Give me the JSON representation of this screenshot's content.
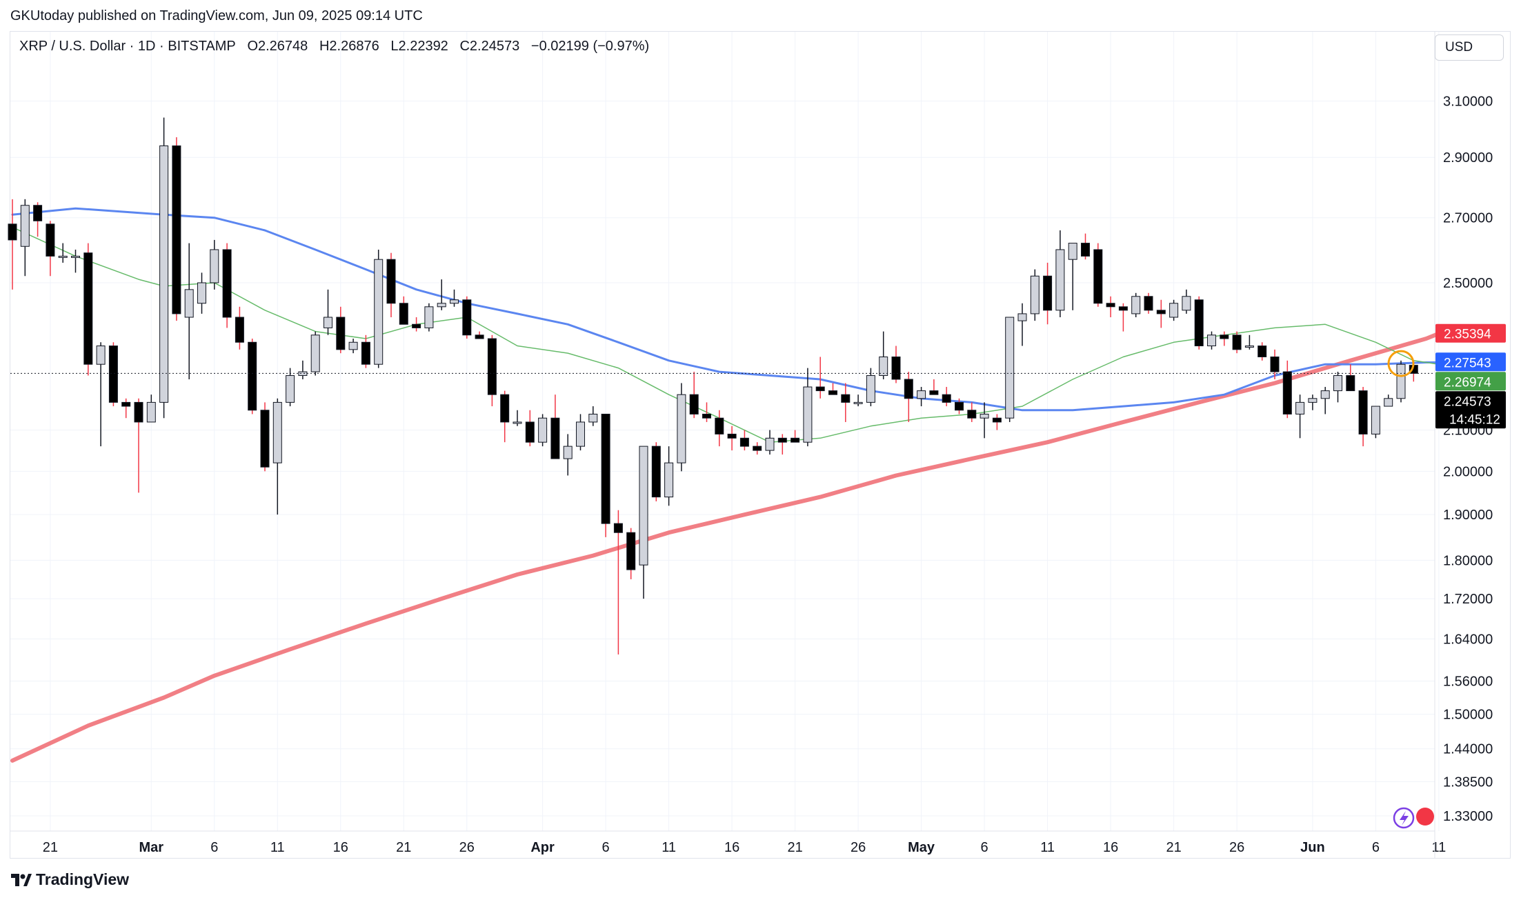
{
  "header": {
    "credit": "GKUtoday published on TradingView.com, Jun 09, 2025 09:14 UTC"
  },
  "legend": {
    "symbol": "XRP / U.S. Dollar · 1D · BITSTAMP",
    "open": "O2.26748",
    "high": "H2.26876",
    "low": "L2.22392",
    "close": "C2.24573",
    "change": "−0.02199 (−0.97%)"
  },
  "currency": "USD",
  "footer": {
    "brand": "TradingView"
  },
  "colors": {
    "up_fill": "#d1d4dc",
    "down_fill": "#000000",
    "wick_up": "#131722",
    "wick_down": "#f23645",
    "ma_red": "#f07178",
    "ma_blue": "#5b86f0",
    "ma_green": "#66bb6a",
    "tag_red": "#f23645",
    "tag_blue": "#2962ff",
    "tag_green": "#43a047",
    "tag_black": "#000000",
    "circle": "#f59e0b"
  },
  "chart_data": {
    "type": "candlestick",
    "title": "XRP / U.S. Dollar · 1D · BITSTAMP",
    "y_scale": "log",
    "ylim": [
      1.3,
      3.22
    ],
    "y_ticks": [
      "3.10000",
      "2.90000",
      "2.70000",
      "2.50000",
      "2.10000",
      "2.00000",
      "1.90000",
      "1.80000",
      "1.72000",
      "1.64000",
      "1.56000",
      "1.50000",
      "1.44000",
      "1.38500",
      "1.33000"
    ],
    "x_ticks": [
      {
        "label": "21",
        "date": "2025-02-21"
      },
      {
        "label": "Mar",
        "date": "2025-03-01"
      },
      {
        "label": "6",
        "date": "2025-03-06"
      },
      {
        "label": "11",
        "date": "2025-03-11"
      },
      {
        "label": "16",
        "date": "2025-03-16"
      },
      {
        "label": "21",
        "date": "2025-03-21"
      },
      {
        "label": "26",
        "date": "2025-03-26"
      },
      {
        "label": "Apr",
        "date": "2025-04-01"
      },
      {
        "label": "6",
        "date": "2025-04-06"
      },
      {
        "label": "11",
        "date": "2025-04-11"
      },
      {
        "label": "16",
        "date": "2025-04-16"
      },
      {
        "label": "21",
        "date": "2025-04-21"
      },
      {
        "label": "26",
        "date": "2025-04-26"
      },
      {
        "label": "May",
        "date": "2025-05-01"
      },
      {
        "label": "6",
        "date": "2025-05-06"
      },
      {
        "label": "11",
        "date": "2025-05-11"
      },
      {
        "label": "16",
        "date": "2025-05-16"
      },
      {
        "label": "21",
        "date": "2025-05-21"
      },
      {
        "label": "26",
        "date": "2025-05-26"
      },
      {
        "label": "Jun",
        "date": "2025-06-01"
      },
      {
        "label": "6",
        "date": "2025-06-06"
      },
      {
        "label": "11",
        "date": "2025-06-11"
      }
    ],
    "first_date": "2025-02-18",
    "candles": [
      {
        "o": 2.68,
        "h": 2.76,
        "l": 2.48,
        "c": 2.63
      },
      {
        "o": 2.61,
        "h": 2.76,
        "l": 2.52,
        "c": 2.74
      },
      {
        "o": 2.74,
        "h": 2.75,
        "l": 2.64,
        "c": 2.69
      },
      {
        "o": 2.68,
        "h": 2.69,
        "l": 2.52,
        "c": 2.58
      },
      {
        "o": 2.58,
        "h": 2.62,
        "l": 2.56,
        "c": 2.58
      },
      {
        "o": 2.58,
        "h": 2.6,
        "l": 2.53,
        "c": 2.58
      },
      {
        "o": 2.59,
        "h": 2.62,
        "l": 2.24,
        "c": 2.27
      },
      {
        "o": 2.27,
        "h": 2.33,
        "l": 2.06,
        "c": 2.32
      },
      {
        "o": 2.32,
        "h": 2.33,
        "l": 2.16,
        "c": 2.17
      },
      {
        "o": 2.17,
        "h": 2.18,
        "l": 2.13,
        "c": 2.16
      },
      {
        "o": 2.17,
        "h": 2.18,
        "l": 1.95,
        "c": 2.12
      },
      {
        "o": 2.12,
        "h": 2.19,
        "l": 2.12,
        "c": 2.17
      },
      {
        "o": 2.17,
        "h": 3.04,
        "l": 2.13,
        "c": 2.94
      },
      {
        "o": 2.94,
        "h": 2.97,
        "l": 2.39,
        "c": 2.41
      },
      {
        "o": 2.4,
        "h": 2.62,
        "l": 2.23,
        "c": 2.48
      },
      {
        "o": 2.44,
        "h": 2.53,
        "l": 2.41,
        "c": 2.5
      },
      {
        "o": 2.5,
        "h": 2.63,
        "l": 2.48,
        "c": 2.6
      },
      {
        "o": 2.6,
        "h": 2.62,
        "l": 2.37,
        "c": 2.4
      },
      {
        "o": 2.4,
        "h": 2.43,
        "l": 2.31,
        "c": 2.33
      },
      {
        "o": 2.33,
        "h": 2.34,
        "l": 2.14,
        "c": 2.15
      },
      {
        "o": 2.15,
        "h": 2.17,
        "l": 2.0,
        "c": 2.01
      },
      {
        "o": 2.02,
        "h": 2.18,
        "l": 1.9,
        "c": 2.17
      },
      {
        "o": 2.17,
        "h": 2.26,
        "l": 2.16,
        "c": 2.24
      },
      {
        "o": 2.24,
        "h": 2.28,
        "l": 2.23,
        "c": 2.25
      },
      {
        "o": 2.25,
        "h": 2.36,
        "l": 2.24,
        "c": 2.35
      },
      {
        "o": 2.37,
        "h": 2.48,
        "l": 2.35,
        "c": 2.4
      },
      {
        "o": 2.4,
        "h": 2.43,
        "l": 2.3,
        "c": 2.31
      },
      {
        "o": 2.31,
        "h": 2.34,
        "l": 2.3,
        "c": 2.33
      },
      {
        "o": 2.33,
        "h": 2.35,
        "l": 2.26,
        "c": 2.27
      },
      {
        "o": 2.27,
        "h": 2.6,
        "l": 2.26,
        "c": 2.57
      },
      {
        "o": 2.57,
        "h": 2.59,
        "l": 2.4,
        "c": 2.44
      },
      {
        "o": 2.44,
        "h": 2.46,
        "l": 2.38,
        "c": 2.38
      },
      {
        "o": 2.38,
        "h": 2.4,
        "l": 2.36,
        "c": 2.37
      },
      {
        "o": 2.37,
        "h": 2.44,
        "l": 2.36,
        "c": 2.43
      },
      {
        "o": 2.43,
        "h": 2.51,
        "l": 2.42,
        "c": 2.44
      },
      {
        "o": 2.44,
        "h": 2.48,
        "l": 2.43,
        "c": 2.45
      },
      {
        "o": 2.45,
        "h": 2.46,
        "l": 2.34,
        "c": 2.35
      },
      {
        "o": 2.35,
        "h": 2.36,
        "l": 2.34,
        "c": 2.34
      },
      {
        "o": 2.34,
        "h": 2.35,
        "l": 2.16,
        "c": 2.19
      },
      {
        "o": 2.19,
        "h": 2.2,
        "l": 2.07,
        "c": 2.12
      },
      {
        "o": 2.12,
        "h": 2.15,
        "l": 2.11,
        "c": 2.12
      },
      {
        "o": 2.12,
        "h": 2.15,
        "l": 2.06,
        "c": 2.07
      },
      {
        "o": 2.07,
        "h": 2.14,
        "l": 2.06,
        "c": 2.13
      },
      {
        "o": 2.13,
        "h": 2.19,
        "l": 2.03,
        "c": 2.03
      },
      {
        "o": 2.03,
        "h": 2.09,
        "l": 1.99,
        "c": 2.06
      },
      {
        "o": 2.06,
        "h": 2.14,
        "l": 2.05,
        "c": 2.12
      },
      {
        "o": 2.12,
        "h": 2.16,
        "l": 2.11,
        "c": 2.14
      },
      {
        "o": 2.14,
        "h": 2.14,
        "l": 1.85,
        "c": 1.88
      },
      {
        "o": 1.88,
        "h": 1.91,
        "l": 1.61,
        "c": 1.86
      },
      {
        "o": 1.86,
        "h": 1.87,
        "l": 1.76,
        "c": 1.78
      },
      {
        "o": 1.79,
        "h": 2.06,
        "l": 1.72,
        "c": 2.06
      },
      {
        "o": 2.06,
        "h": 2.07,
        "l": 1.93,
        "c": 1.94
      },
      {
        "o": 1.94,
        "h": 2.06,
        "l": 1.92,
        "c": 2.02
      },
      {
        "o": 2.02,
        "h": 2.22,
        "l": 2.0,
        "c": 2.19
      },
      {
        "o": 2.19,
        "h": 2.25,
        "l": 2.13,
        "c": 2.14
      },
      {
        "o": 2.14,
        "h": 2.17,
        "l": 2.12,
        "c": 2.13
      },
      {
        "o": 2.13,
        "h": 2.15,
        "l": 2.06,
        "c": 2.09
      },
      {
        "o": 2.09,
        "h": 2.11,
        "l": 2.05,
        "c": 2.08
      },
      {
        "o": 2.08,
        "h": 2.1,
        "l": 2.05,
        "c": 2.06
      },
      {
        "o": 2.06,
        "h": 2.07,
        "l": 2.04,
        "c": 2.05
      },
      {
        "o": 2.05,
        "h": 2.1,
        "l": 2.04,
        "c": 2.08
      },
      {
        "o": 2.08,
        "h": 2.09,
        "l": 2.04,
        "c": 2.07
      },
      {
        "o": 2.08,
        "h": 2.1,
        "l": 2.07,
        "c": 2.07
      },
      {
        "o": 2.07,
        "h": 2.26,
        "l": 2.06,
        "c": 2.21
      },
      {
        "o": 2.21,
        "h": 2.29,
        "l": 2.18,
        "c": 2.2
      },
      {
        "o": 2.2,
        "h": 2.22,
        "l": 2.19,
        "c": 2.19
      },
      {
        "o": 2.19,
        "h": 2.22,
        "l": 2.12,
        "c": 2.17
      },
      {
        "o": 2.17,
        "h": 2.19,
        "l": 2.16,
        "c": 2.17
      },
      {
        "o": 2.17,
        "h": 2.26,
        "l": 2.16,
        "c": 2.24
      },
      {
        "o": 2.24,
        "h": 2.36,
        "l": 2.23,
        "c": 2.29
      },
      {
        "o": 2.29,
        "h": 2.32,
        "l": 2.22,
        "c": 2.23
      },
      {
        "o": 2.23,
        "h": 2.25,
        "l": 2.12,
        "c": 2.18
      },
      {
        "o": 2.18,
        "h": 2.21,
        "l": 2.16,
        "c": 2.2
      },
      {
        "o": 2.2,
        "h": 2.23,
        "l": 2.19,
        "c": 2.19
      },
      {
        "o": 2.19,
        "h": 2.21,
        "l": 2.16,
        "c": 2.17
      },
      {
        "o": 2.17,
        "h": 2.18,
        "l": 2.14,
        "c": 2.15
      },
      {
        "o": 2.15,
        "h": 2.17,
        "l": 2.12,
        "c": 2.13
      },
      {
        "o": 2.13,
        "h": 2.17,
        "l": 2.08,
        "c": 2.14
      },
      {
        "o": 2.13,
        "h": 2.14,
        "l": 2.1,
        "c": 2.12
      },
      {
        "o": 2.13,
        "h": 2.4,
        "l": 2.12,
        "c": 2.4
      },
      {
        "o": 2.39,
        "h": 2.44,
        "l": 2.32,
        "c": 2.41
      },
      {
        "o": 2.41,
        "h": 2.54,
        "l": 2.39,
        "c": 2.52
      },
      {
        "o": 2.52,
        "h": 2.56,
        "l": 2.38,
        "c": 2.42
      },
      {
        "o": 2.42,
        "h": 2.66,
        "l": 2.4,
        "c": 2.6
      },
      {
        "o": 2.57,
        "h": 2.62,
        "l": 2.42,
        "c": 2.62
      },
      {
        "o": 2.62,
        "h": 2.65,
        "l": 2.57,
        "c": 2.58
      },
      {
        "o": 2.6,
        "h": 2.62,
        "l": 2.43,
        "c": 2.44
      },
      {
        "o": 2.44,
        "h": 2.46,
        "l": 2.4,
        "c": 2.43
      },
      {
        "o": 2.43,
        "h": 2.44,
        "l": 2.36,
        "c": 2.42
      },
      {
        "o": 2.41,
        "h": 2.47,
        "l": 2.4,
        "c": 2.46
      },
      {
        "o": 2.46,
        "h": 2.47,
        "l": 2.41,
        "c": 2.42
      },
      {
        "o": 2.42,
        "h": 2.45,
        "l": 2.37,
        "c": 2.41
      },
      {
        "o": 2.4,
        "h": 2.45,
        "l": 2.39,
        "c": 2.44
      },
      {
        "o": 2.42,
        "h": 2.48,
        "l": 2.41,
        "c": 2.46
      },
      {
        "o": 2.45,
        "h": 2.46,
        "l": 2.31,
        "c": 2.32
      },
      {
        "o": 2.32,
        "h": 2.36,
        "l": 2.31,
        "c": 2.35
      },
      {
        "o": 2.35,
        "h": 2.36,
        "l": 2.32,
        "c": 2.34
      },
      {
        "o": 2.35,
        "h": 2.36,
        "l": 2.3,
        "c": 2.31
      },
      {
        "o": 2.32,
        "h": 2.35,
        "l": 2.31,
        "c": 2.32
      },
      {
        "o": 2.32,
        "h": 2.33,
        "l": 2.28,
        "c": 2.29
      },
      {
        "o": 2.29,
        "h": 2.31,
        "l": 2.23,
        "c": 2.25
      },
      {
        "o": 2.25,
        "h": 2.28,
        "l": 2.13,
        "c": 2.14
      },
      {
        "o": 2.14,
        "h": 2.19,
        "l": 2.08,
        "c": 2.17
      },
      {
        "o": 2.17,
        "h": 2.19,
        "l": 2.15,
        "c": 2.18
      },
      {
        "o": 2.18,
        "h": 2.21,
        "l": 2.14,
        "c": 2.2
      },
      {
        "o": 2.2,
        "h": 2.25,
        "l": 2.17,
        "c": 2.24
      },
      {
        "o": 2.24,
        "h": 2.27,
        "l": 2.2,
        "c": 2.2
      },
      {
        "o": 2.2,
        "h": 2.21,
        "l": 2.06,
        "c": 2.09
      },
      {
        "o": 2.09,
        "h": 2.16,
        "l": 2.08,
        "c": 2.16
      },
      {
        "o": 2.16,
        "h": 2.19,
        "l": 2.16,
        "c": 2.18
      },
      {
        "o": 2.18,
        "h": 2.28,
        "l": 2.17,
        "c": 2.27
      },
      {
        "o": 2.26748,
        "h": 2.26876,
        "l": 2.22392,
        "c": 2.24573
      }
    ],
    "moving_averages": [
      {
        "name": "MA red (long)",
        "color": "#f07178",
        "last": "2.35394",
        "points": [
          [
            0,
            1.42
          ],
          [
            6,
            1.48
          ],
          [
            12,
            1.53
          ],
          [
            16,
            1.57
          ],
          [
            22,
            1.62
          ],
          [
            28,
            1.67
          ],
          [
            34,
            1.72
          ],
          [
            40,
            1.77
          ],
          [
            46,
            1.81
          ],
          [
            52,
            1.86
          ],
          [
            58,
            1.9
          ],
          [
            64,
            1.94
          ],
          [
            70,
            1.99
          ],
          [
            76,
            2.03
          ],
          [
            82,
            2.07
          ],
          [
            88,
            2.12
          ],
          [
            94,
            2.17
          ],
          [
            100,
            2.22
          ],
          [
            106,
            2.28
          ],
          [
            112,
            2.34
          ],
          [
            113,
            2.354
          ]
        ]
      },
      {
        "name": "MA blue",
        "color": "#5b86f0",
        "last": "2.27543",
        "points": [
          [
            0,
            2.71
          ],
          [
            5,
            2.73
          ],
          [
            12,
            2.71
          ],
          [
            16,
            2.7
          ],
          [
            20,
            2.66
          ],
          [
            24,
            2.6
          ],
          [
            28,
            2.54
          ],
          [
            32,
            2.48
          ],
          [
            36,
            2.44
          ],
          [
            40,
            2.41
          ],
          [
            44,
            2.38
          ],
          [
            48,
            2.33
          ],
          [
            52,
            2.28
          ],
          [
            56,
            2.25
          ],
          [
            60,
            2.24
          ],
          [
            64,
            2.23
          ],
          [
            68,
            2.2
          ],
          [
            72,
            2.18
          ],
          [
            76,
            2.17
          ],
          [
            80,
            2.15
          ],
          [
            84,
            2.15
          ],
          [
            88,
            2.16
          ],
          [
            92,
            2.17
          ],
          [
            96,
            2.19
          ],
          [
            100,
            2.24
          ],
          [
            104,
            2.27
          ],
          [
            108,
            2.27
          ],
          [
            112,
            2.275
          ],
          [
            113,
            2.275
          ]
        ]
      },
      {
        "name": "MA green",
        "color": "#66bb6a",
        "last": "2.26974",
        "points": [
          [
            0,
            2.67
          ],
          [
            5,
            2.58
          ],
          [
            10,
            2.51
          ],
          [
            12,
            2.49
          ],
          [
            16,
            2.5
          ],
          [
            20,
            2.42
          ],
          [
            24,
            2.36
          ],
          [
            28,
            2.34
          ],
          [
            32,
            2.38
          ],
          [
            36,
            2.4
          ],
          [
            40,
            2.32
          ],
          [
            44,
            2.3
          ],
          [
            48,
            2.26
          ],
          [
            52,
            2.19
          ],
          [
            56,
            2.13
          ],
          [
            60,
            2.07
          ],
          [
            64,
            2.08
          ],
          [
            68,
            2.11
          ],
          [
            72,
            2.13
          ],
          [
            76,
            2.14
          ],
          [
            80,
            2.16
          ],
          [
            84,
            2.23
          ],
          [
            88,
            2.29
          ],
          [
            92,
            2.33
          ],
          [
            96,
            2.35
          ],
          [
            100,
            2.37
          ],
          [
            104,
            2.38
          ],
          [
            108,
            2.33
          ],
          [
            111,
            2.28
          ],
          [
            113,
            2.27
          ]
        ]
      }
    ],
    "price_tags": [
      {
        "value": "2.35394",
        "color": "red",
        "price": 2.35394
      },
      {
        "value": "2.27543",
        "color": "blue",
        "price": 2.27543
      },
      {
        "value": "2.26974",
        "color": "green",
        "price": 2.26974
      },
      {
        "value": "2.24573",
        "color": "black",
        "price": 2.24573,
        "countdown": "14:45:12"
      }
    ],
    "current_price": 2.24573
  }
}
